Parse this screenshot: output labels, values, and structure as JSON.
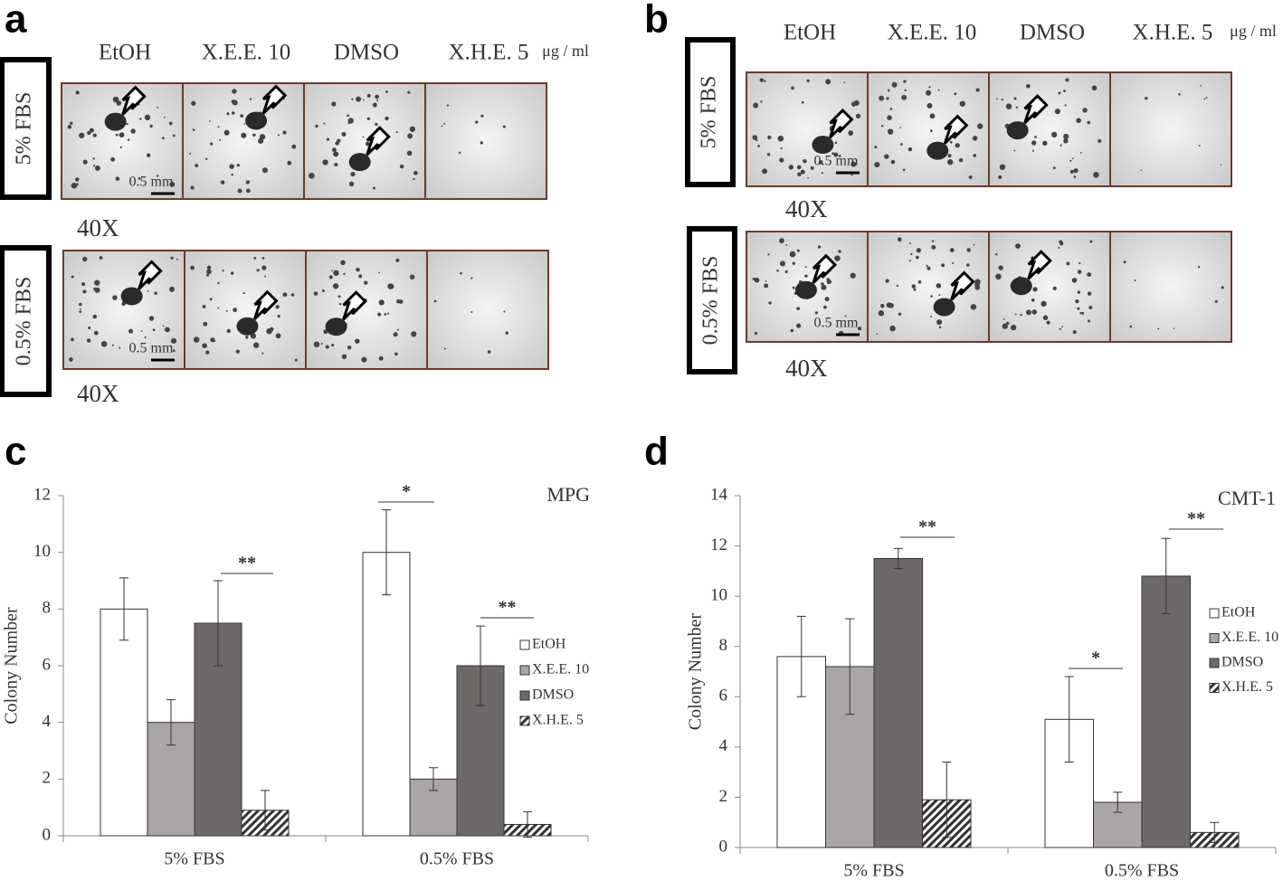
{
  "panels": [
    {
      "letter": "a",
      "columns": [
        "EtOH",
        "X.E.E. 10",
        "DMSO",
        "X.H.E. 5"
      ],
      "unit": "μg / ml",
      "rows": [
        "5% FBS",
        "0.5% FBS"
      ],
      "magnification": "40X",
      "scale": "0.5 mm"
    },
    {
      "letter": "b",
      "columns": [
        "EtOH",
        "X.E.E. 10",
        "DMSO",
        "X.H.E. 5"
      ],
      "unit": "μg / ml",
      "rows": [
        "5% FBS",
        "0.5% FBS"
      ],
      "magnification": "40X",
      "scale": "0.5 mm"
    }
  ],
  "chart_data": [
    {
      "type": "bar",
      "panel_label": "c",
      "annotation": "MPG",
      "y_label": "Colony Number",
      "categories": [
        "5% FBS",
        "0.5% FBS"
      ],
      "series": [
        {
          "name": "EtOH",
          "color": "#ffffff",
          "values": [
            8,
            10
          ],
          "errors": [
            1.1,
            1.5
          ]
        },
        {
          "name": "X.E.E. 10",
          "color": "#aaa6a5",
          "values": [
            4,
            2
          ],
          "errors": [
            0.8,
            0.4
          ]
        },
        {
          "name": "DMSO",
          "color": "#6d6968",
          "values": [
            7.5,
            6
          ],
          "errors": [
            1.5,
            1.4
          ]
        },
        {
          "name": "X.H.E. 5",
          "color": "#333333",
          "hatch": true,
          "values": [
            0.9,
            0.4
          ],
          "errors": [
            0.7,
            0.45
          ]
        }
      ],
      "significance": [
        "*",
        "**",
        "**"
      ],
      "ylim": [
        0,
        12
      ],
      "yticks": [
        0,
        2,
        4,
        6,
        8,
        10,
        12
      ]
    },
    {
      "type": "bar",
      "panel_label": "d",
      "annotation": "CMT-1",
      "y_label": "Colony Number",
      "categories": [
        "5% FBS",
        "0.5% FBS"
      ],
      "series": [
        {
          "name": "EtOH",
          "color": "#ffffff",
          "values": [
            7.6,
            5.1
          ],
          "errors": [
            1.6,
            1.7
          ]
        },
        {
          "name": "X.E.E. 10",
          "color": "#aaa6a5",
          "values": [
            7.2,
            1.8
          ],
          "errors": [
            1.9,
            0.4
          ]
        },
        {
          "name": "DMSO",
          "color": "#6d6968",
          "values": [
            11.5,
            10.8
          ],
          "errors": [
            0.4,
            1.5
          ]
        },
        {
          "name": "X.H.E. 5",
          "color": "#333333",
          "hatch": true,
          "values": [
            1.9,
            0.6
          ],
          "errors": [
            1.5,
            0.4
          ]
        }
      ],
      "significance": [
        "**",
        "*",
        "**"
      ],
      "ylim": [
        0,
        14
      ],
      "yticks": [
        0,
        2,
        4,
        6,
        8,
        10,
        12,
        14
      ]
    }
  ]
}
